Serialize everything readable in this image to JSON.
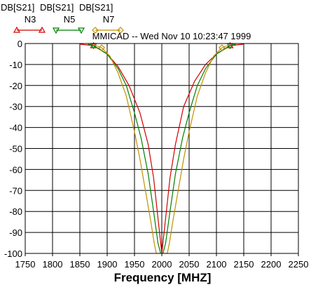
{
  "chart_data": {
    "type": "line",
    "title": "MMICAD -- Wed Nov 10 10:23:47 1999",
    "xlabel": "Frequency [MHZ]",
    "ylabel": "",
    "xlim": [
      1750,
      2250
    ],
    "ylim": [
      -100,
      0
    ],
    "xticks": [
      "1750",
      "1800",
      "1850",
      "1900",
      "1950",
      "2000",
      "2050",
      "2100",
      "2150",
      "2200",
      "2250"
    ],
    "yticks": [
      "0",
      "-10",
      "-20",
      "-30",
      "-40",
      "-50",
      "-60",
      "-70",
      "-80",
      "-90",
      "-100"
    ],
    "grid": true,
    "legend_position": "top-left",
    "series": [
      {
        "name": "N3",
        "header": "DB[S21]",
        "color": "#d40000",
        "marker": "triangle-up",
        "x": [
          1850,
          1875,
          1900,
          1920,
          1940,
          1960,
          1975,
          1985,
          1995,
          2000,
          2005,
          2015,
          2025,
          2040,
          2060,
          2080,
          2100,
          2125,
          2150
        ],
        "y": [
          -0.3,
          -1,
          -5,
          -11,
          -20,
          -33,
          -48,
          -64,
          -88,
          -100,
          -88,
          -64,
          -48,
          -30,
          -18,
          -10,
          -5,
          -1,
          -0.3
        ]
      },
      {
        "name": "N5",
        "header": "DB[S21]",
        "color": "#008000",
        "marker": "triangle-down",
        "x": [
          1865,
          1875,
          1900,
          1920,
          1935,
          1950,
          1962,
          1975,
          1985,
          1993,
          1998,
          2002,
          2007,
          2015,
          2025,
          2038,
          2050,
          2065,
          2080,
          2100,
          2125,
          2135
        ],
        "y": [
          -0.3,
          -1,
          -5,
          -12,
          -20,
          -33,
          -45,
          -62,
          -80,
          -95,
          -100,
          -100,
          -95,
          -80,
          -62,
          -45,
          -33,
          -20,
          -12,
          -5,
          -1,
          -0.3
        ]
      },
      {
        "name": "N7",
        "header": "DB[S21]",
        "color": "#c09000",
        "marker": "diamond",
        "x": [
          1875,
          1890,
          1905,
          1920,
          1935,
          1950,
          1960,
          1970,
          1980,
          1986,
          1990,
          2010,
          2014,
          2020,
          2030,
          2040,
          2050,
          2065,
          2080,
          2095,
          2110,
          2125
        ],
        "y": [
          -0.5,
          -2,
          -6,
          -14,
          -25,
          -42,
          -55,
          -70,
          -85,
          -95,
          -100,
          -100,
          -95,
          -85,
          -70,
          -55,
          -42,
          -25,
          -14,
          -6,
          -2,
          -0.5
        ]
      }
    ]
  }
}
